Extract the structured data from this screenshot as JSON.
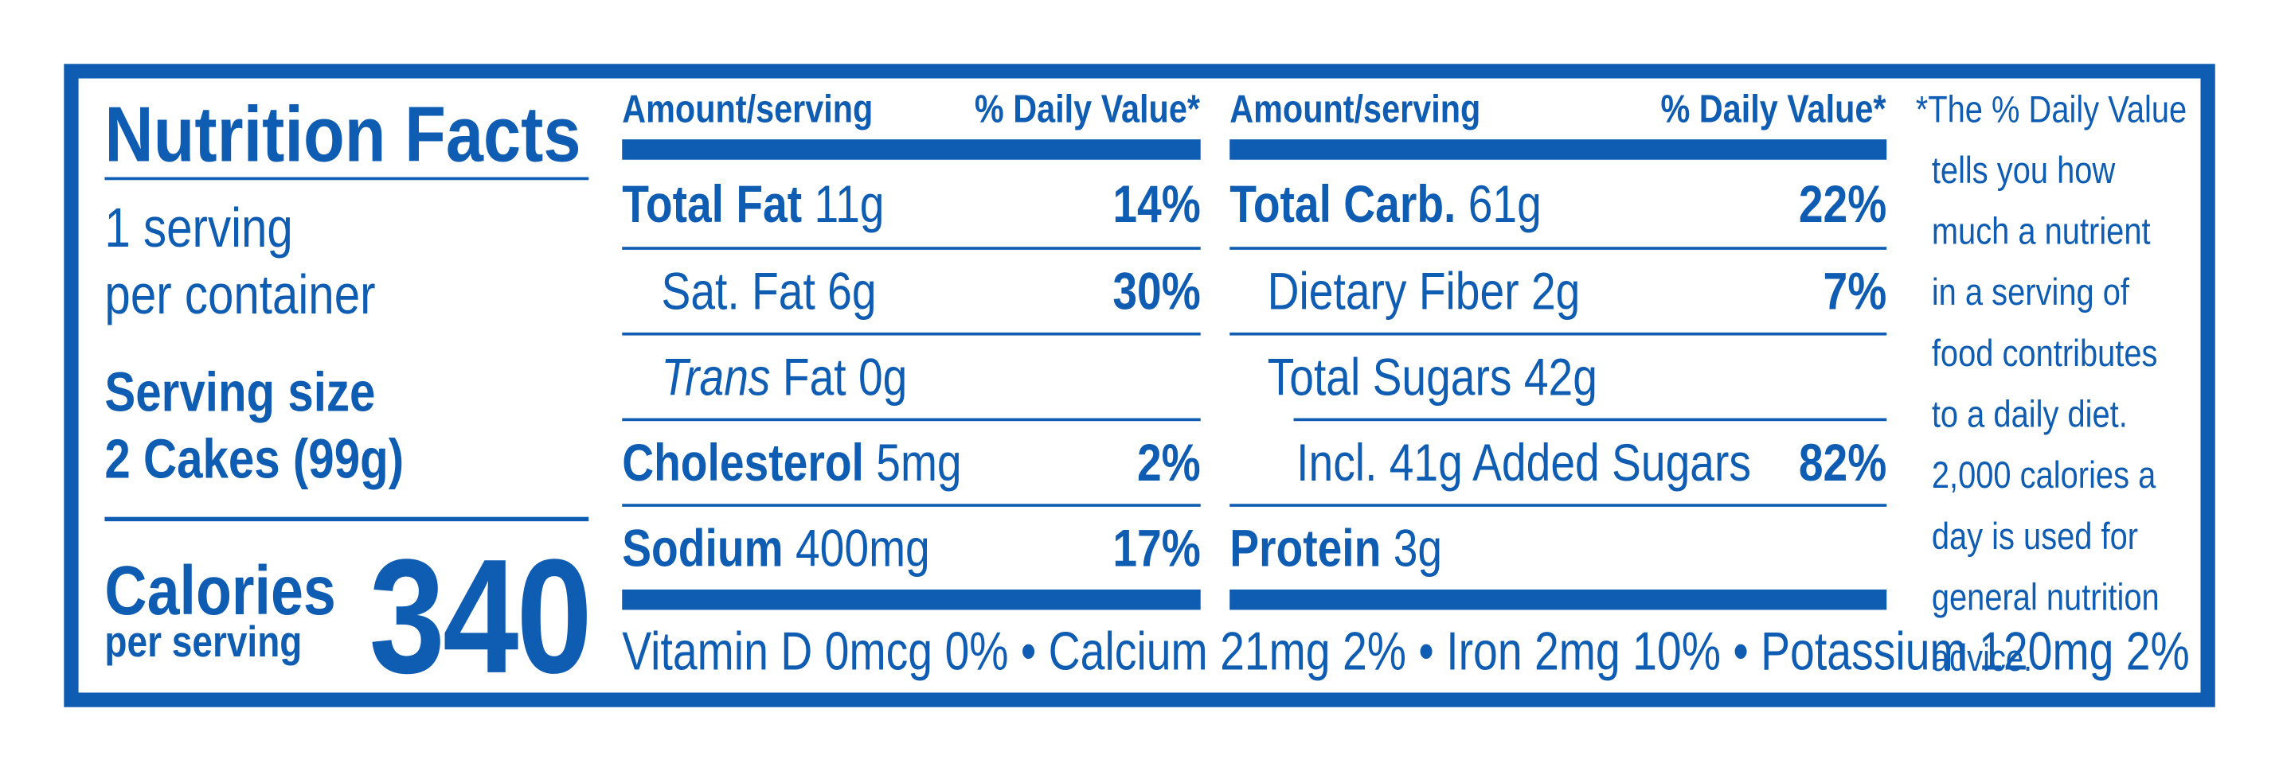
{
  "title": "Nutrition Facts",
  "servings": [
    "1 serving",
    "per container"
  ],
  "serving_size_label": "Serving size",
  "serving_size": "2 Cakes (99g)",
  "calories_label": "Calories",
  "calories_sublabel": "per serving",
  "calories": 340,
  "columns": [
    {
      "header_amount": "Amount/serving",
      "header_dv": "% Daily Value*",
      "rows": [
        {
          "name": "Total Fat",
          "amount": "11g",
          "dv": "14%"
        },
        {
          "name": "Sat. Fat",
          "amount": "6g",
          "dv": "30%"
        },
        {
          "name_italic": "Trans",
          "name": "Fat",
          "amount": "0g"
        },
        {
          "name": "Cholesterol",
          "amount": "5mg",
          "dv": "2%"
        },
        {
          "name": "Sodium",
          "amount": "400mg",
          "dv": "17%"
        }
      ]
    },
    {
      "header_amount": "Amount/serving",
      "header_dv": "% Daily Value*",
      "rows": [
        {
          "name": "Total Carb.",
          "amount": "61g",
          "dv": "22%"
        },
        {
          "name": "Dietary Fiber",
          "amount": "2g",
          "dv": "7%"
        },
        {
          "name": "Total Sugars",
          "amount": "42g"
        },
        {
          "name": "Incl. 41g Added Sugars",
          "dv": "82%"
        },
        {
          "name": "Protein",
          "amount": "3g"
        }
      ]
    }
  ],
  "vitamins": "Vitamin D 0mcg 0% • Calcium 21mg 2% • Iron 2mg 10% • Potassium 120mg 2%",
  "footnote": [
    "*The % Daily Value",
    "tells you how",
    "much a nutrient",
    "in a serving of",
    "food contributes",
    "to a daily diet.",
    "2,000 calories a",
    "day is used for",
    "general nutrition",
    "advice."
  ]
}
